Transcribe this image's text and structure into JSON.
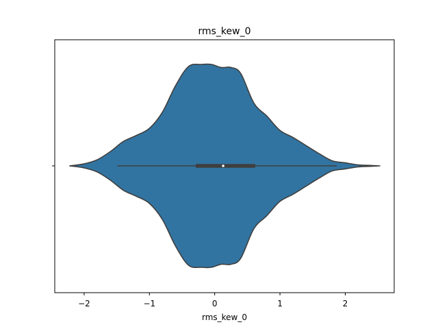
{
  "chart_data": {
    "type": "violin",
    "title": "rms_kew_0",
    "xlabel": "rms_kew_0",
    "ylabel": "",
    "xlim": [
      -2.45,
      2.75
    ],
    "xticks": [
      -2,
      -1,
      0,
      1,
      2
    ],
    "xtick_labels": [
      "−2",
      "−1",
      "0",
      "1",
      "2"
    ],
    "grid": false,
    "legend": "none",
    "colors": {
      "violin_fill": "#3274a1",
      "outline": "#3f3f3f",
      "median_dot": "#ffffff"
    },
    "density_profile": {
      "x": [
        -2.22,
        -2.0,
        -1.8,
        -1.6,
        -1.4,
        -1.2,
        -1.0,
        -0.8,
        -0.6,
        -0.4,
        -0.2,
        -0.05,
        0.1,
        0.25,
        0.4,
        0.6,
        0.8,
        1.0,
        1.2,
        1.4,
        1.6,
        1.8,
        2.0,
        2.2,
        2.4,
        2.53
      ],
      "density_fraction": [
        0.0,
        0.02,
        0.06,
        0.14,
        0.24,
        0.3,
        0.37,
        0.53,
        0.79,
        0.98,
        1.0,
        1.0,
        0.97,
        0.97,
        0.91,
        0.62,
        0.49,
        0.35,
        0.28,
        0.2,
        0.12,
        0.05,
        0.03,
        0.01,
        0.004,
        0.0
      ]
    },
    "box": {
      "whisker_low": -1.49,
      "q1": -0.29,
      "median": 0.13,
      "q3": 0.62,
      "whisker_high": 1.87
    }
  }
}
